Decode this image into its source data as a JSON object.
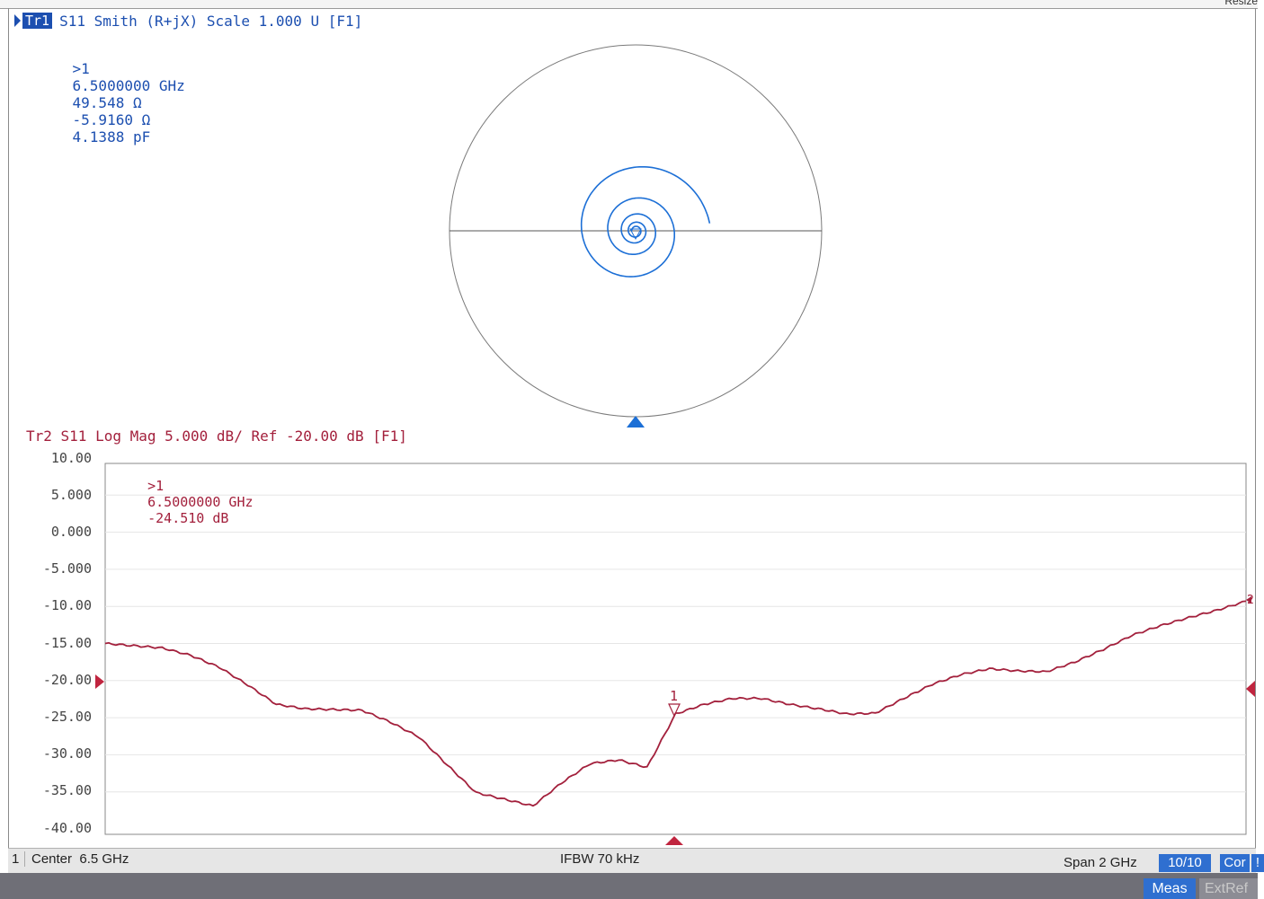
{
  "top_strip": {
    "resize_label": "Resize"
  },
  "trace1": {
    "badge": "Tr1",
    "header": "S11 Smith (R+jX) Scale 1.000 U [F1]",
    "marker": {
      "id": ">1",
      "freq": "6.5000000 GHz",
      "resistance": "49.548 Ω",
      "reactance": "-5.9160 Ω",
      "capacitance": "4.1388 pF"
    }
  },
  "trace2": {
    "header": "Tr2 S11 Log Mag 5.000 dB/ Ref -20.00 dB [F1]",
    "marker": {
      "id": ">1",
      "freq": "6.5000000 GHz",
      "value": "-24.510 dB"
    },
    "marker_number": "1",
    "ref_position_label": "2"
  },
  "y_ticks": [
    "10.00",
    "5.000",
    "0.000",
    "-5.000",
    "-10.00",
    "-15.00",
    "-20.00",
    "-25.00",
    "-30.00",
    "-35.00",
    "-40.00"
  ],
  "chart_data": {
    "type": "line",
    "series": [
      {
        "x": [
          5.5,
          5.55,
          5.6,
          5.65,
          5.7,
          5.75,
          5.8,
          5.85,
          5.9,
          5.95,
          6.0,
          6.05,
          6.1,
          6.15,
          6.2,
          6.25,
          6.3,
          6.35,
          6.4,
          6.45,
          6.5,
          6.55,
          6.6,
          6.65,
          6.7,
          6.75,
          6.8,
          6.85,
          6.9,
          6.95,
          7.0,
          7.05,
          7.1,
          7.15,
          7.2,
          7.25,
          7.3,
          7.35,
          7.4,
          7.45,
          7.5
        ],
        "y": [
          -15.0,
          -15.3,
          -15.6,
          -16.6,
          -18.2,
          -20.6,
          -23.2,
          -23.8,
          -23.9,
          -24.0,
          -25.6,
          -27.6,
          -31.4,
          -35.1,
          -36.0,
          -36.9,
          -33.8,
          -31.2,
          -30.7,
          -31.7,
          -24.5,
          -23.2,
          -22.4,
          -22.4,
          -23.2,
          -23.8,
          -24.5,
          -24.4,
          -22.4,
          -20.5,
          -19.2,
          -18.4,
          -18.7,
          -18.8,
          -17.5,
          -15.8,
          -13.9,
          -12.6,
          -11.5,
          -10.5,
          -9.3
        ]
      }
    ],
    "xlim": [
      5.5,
      7.5
    ],
    "ylim": [
      -40,
      10
    ],
    "grid": true,
    "marker_x": 6.5,
    "marker_y": -24.51,
    "reference_level": -20,
    "smith_chart": {
      "scale": 1.0,
      "trace_color": "#1c6fd6"
    },
    "colors": {
      "trace1": "#1c6fd6",
      "trace2": "#a3203c"
    }
  },
  "status_bar": {
    "channel": "1",
    "center": "Center  6.5 GHz",
    "ifbw": "IFBW 70 kHz",
    "span": "Span 2 GHz",
    "avg": "10/10",
    "cor": "Cor",
    "extra": "!"
  },
  "softkeys": {
    "meas": "Meas",
    "extref": "ExtRef"
  }
}
